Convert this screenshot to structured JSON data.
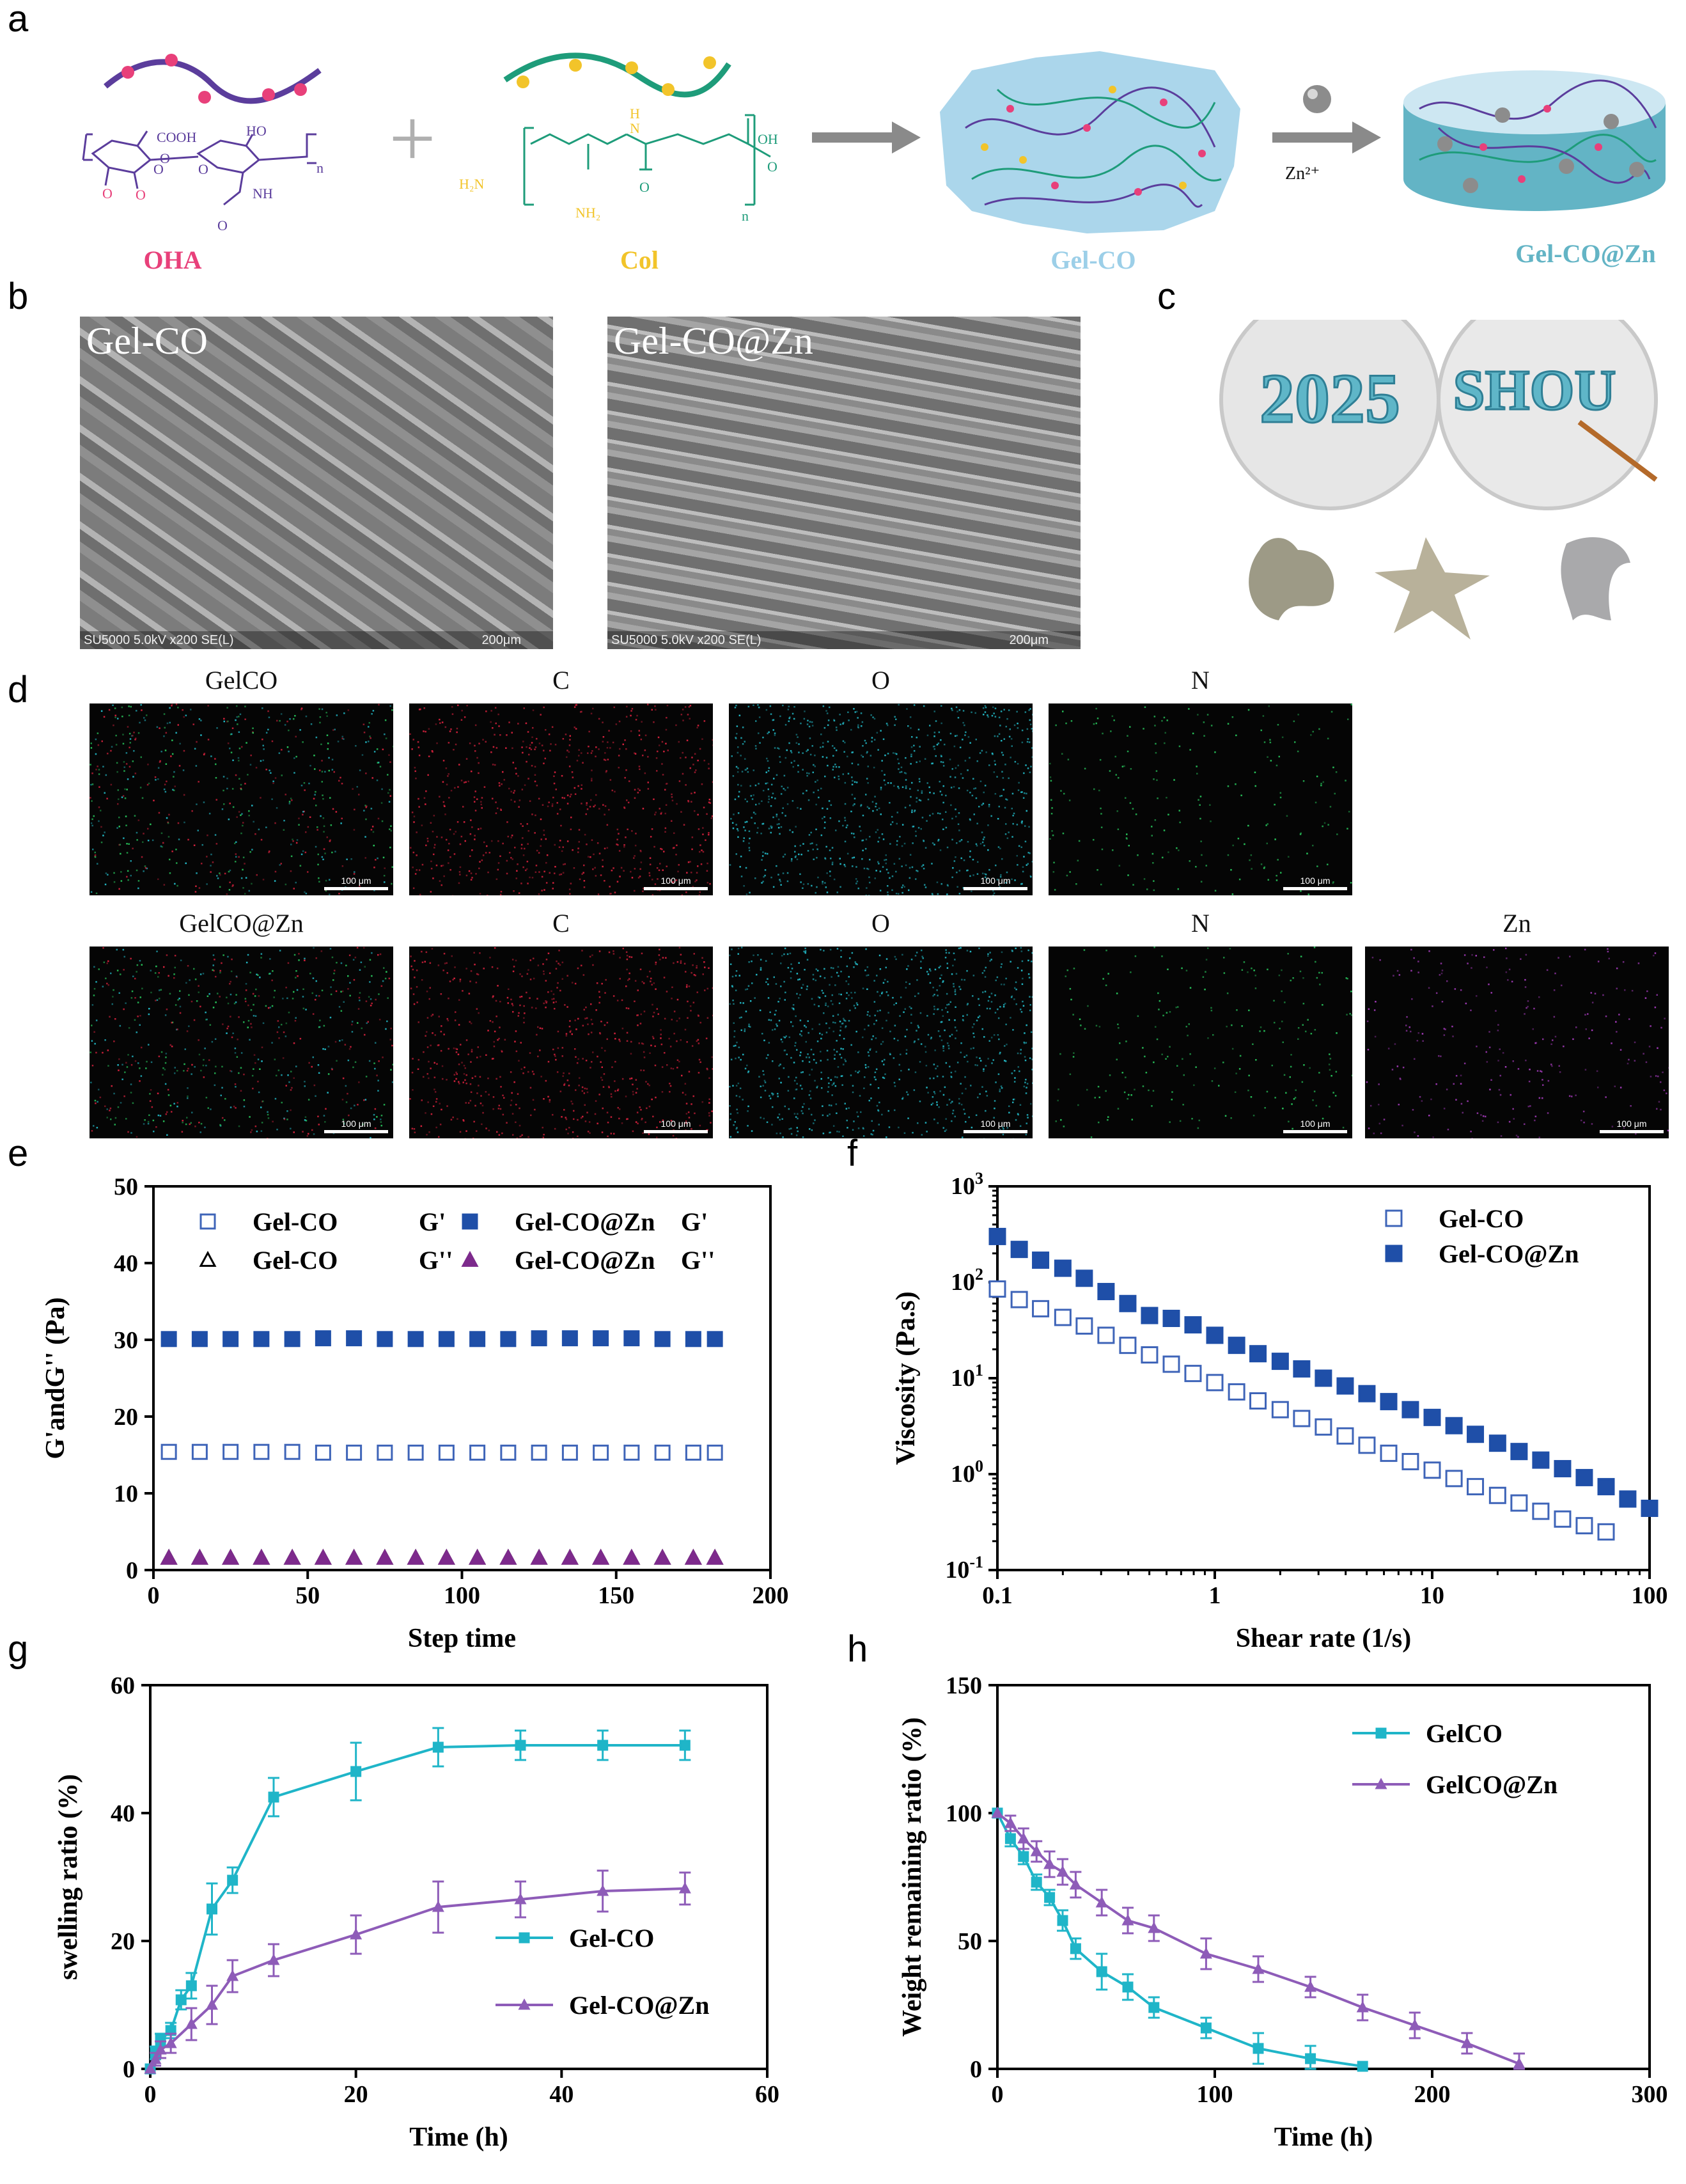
{
  "panels": {
    "a": "a",
    "b": "b",
    "c": "c",
    "d": "d",
    "e": "e",
    "f": "f",
    "g": "g",
    "h": "h"
  },
  "scheme": {
    "oha_label": "OHA",
    "col_label": "Col",
    "gelco_label": "Gel-CO",
    "gelcozn_label": "Gel-CO@Zn",
    "zn_arrow_label": "Zn²⁺",
    "plus": "+",
    "oha_struct": {
      "cooh": "COOH",
      "ho": "HO",
      "nh": "NH",
      "o1": "O",
      "o2": "O",
      "o3": "O",
      "o4": "O",
      "o5": "O",
      "o6": "O",
      "n": "n"
    },
    "col_struct": {
      "oh": "OH",
      "h": "H",
      "n_atom": "N",
      "h2n": "H₂N",
      "nh2": "NH₂",
      "o1": "O",
      "o2": "O",
      "n": "n"
    },
    "colors": {
      "oha": "#e8407a",
      "col": "#f2c42a",
      "gel": "#9ccfe8",
      "gelzn": "#63b4c5",
      "purple": "#5b3d9c",
      "green": "#1e9c7a"
    }
  },
  "sem": {
    "left_label": "Gel-CO",
    "right_label": "Gel-CO@Zn",
    "left_footer": "SU5000 5.0kV x200 SE(L)",
    "right_footer": "SU5000 5.0kV x200 SE(L)",
    "scale": "200μm"
  },
  "photos": {
    "dish1_text": "2025",
    "dish2_text": "SHOU"
  },
  "eds": {
    "row1": [
      "GelCO",
      "C",
      "O",
      "N"
    ],
    "row2": [
      "GelCO@Zn",
      "C",
      "O",
      "N",
      "Zn"
    ],
    "scale": "100 μm",
    "colors": {
      "mix": "#3a2c3a",
      "C": "#d4213c",
      "O": "#22b7c4",
      "N": "#27c25a",
      "Zn": "#a23ab8"
    }
  },
  "chart_data": [
    {
      "panel": "e",
      "type": "scatter",
      "xlabel": "Step time",
      "ylabel": "G'andG'' (Pa)",
      "xlim": [
        0,
        200
      ],
      "ylim": [
        0,
        50
      ],
      "xticks": [
        "0",
        "50",
        "100",
        "150",
        "200"
      ],
      "yticks": [
        "0",
        "10",
        "20",
        "30",
        "40",
        "50"
      ],
      "legend_position": "top",
      "series": [
        {
          "name": "Gel-CO",
          "modulus": "G'",
          "marker": "square-open",
          "color": "#3e64b8",
          "x": [
            5,
            15,
            25,
            35,
            45,
            55,
            65,
            75,
            85,
            95,
            105,
            115,
            125,
            135,
            145,
            155,
            165,
            175,
            182
          ],
          "y": [
            15.4,
            15.4,
            15.4,
            15.4,
            15.4,
            15.3,
            15.3,
            15.3,
            15.3,
            15.3,
            15.3,
            15.3,
            15.3,
            15.3,
            15.3,
            15.3,
            15.3,
            15.3,
            15.3
          ]
        },
        {
          "name": "Gel-CO@Zn",
          "modulus": "G'",
          "marker": "square-filled",
          "color": "#1f4fa8",
          "x": [
            5,
            15,
            25,
            35,
            45,
            55,
            65,
            75,
            85,
            95,
            105,
            115,
            125,
            135,
            145,
            155,
            165,
            175,
            182
          ],
          "y": [
            30.1,
            30.1,
            30.1,
            30.1,
            30.1,
            30.2,
            30.2,
            30.1,
            30.1,
            30.1,
            30.1,
            30.1,
            30.2,
            30.2,
            30.2,
            30.2,
            30.1,
            30.1,
            30.1
          ]
        },
        {
          "name": "Gel-CO",
          "modulus": "G''",
          "marker": "triangle-open",
          "color": "#000000",
          "x": [
            5,
            15,
            25,
            35,
            45,
            55,
            65,
            75,
            85,
            95,
            105,
            115,
            125,
            135,
            145,
            155,
            165,
            175,
            182
          ],
          "y": [
            1.6,
            1.6,
            1.6,
            1.6,
            1.6,
            1.6,
            1.6,
            1.6,
            1.6,
            1.6,
            1.6,
            1.6,
            1.6,
            1.6,
            1.6,
            1.6,
            1.6,
            1.6,
            1.6
          ]
        },
        {
          "name": "Gel-CO@Zn",
          "modulus": "G''",
          "marker": "triangle-filled",
          "color": "#7d2a8c",
          "x": [
            5,
            15,
            25,
            35,
            45,
            55,
            65,
            75,
            85,
            95,
            105,
            115,
            125,
            135,
            145,
            155,
            165,
            175,
            182
          ],
          "y": [
            1.6,
            1.6,
            1.6,
            1.6,
            1.6,
            1.6,
            1.6,
            1.6,
            1.6,
            1.6,
            1.6,
            1.6,
            1.6,
            1.6,
            1.6,
            1.6,
            1.6,
            1.6,
            1.6
          ]
        }
      ]
    },
    {
      "panel": "f",
      "type": "scatter",
      "xlabel": "Shear rate (1/s)",
      "ylabel": "Viscosity (Pa.s)",
      "xscale": "log",
      "yscale": "log",
      "xlim": [
        0.1,
        100
      ],
      "ylim": [
        0.1,
        1000
      ],
      "xticks": [
        "0.1",
        "1",
        "10",
        "100"
      ],
      "yticks": [
        {
          "base": "10",
          "exp": "-1"
        },
        {
          "base": "10",
          "exp": "0"
        },
        {
          "base": "10",
          "exp": "1"
        },
        {
          "base": "10",
          "exp": "2"
        },
        {
          "base": "10",
          "exp": "3"
        }
      ],
      "legend_position": "top-right",
      "series": [
        {
          "name": "Gel-CO",
          "marker": "square-open",
          "color": "#3e64b8",
          "x": [
            0.1,
            0.126,
            0.158,
            0.2,
            0.251,
            0.316,
            0.398,
            0.501,
            0.631,
            0.794,
            1,
            1.26,
            1.58,
            2,
            2.51,
            3.16,
            3.98,
            5.01,
            6.31,
            7.94,
            10,
            12.6,
            15.8,
            20,
            25.1,
            31.6,
            39.8,
            50.1,
            63.1
          ],
          "y": [
            85,
            66,
            53,
            43,
            35,
            28,
            22,
            17.5,
            14,
            11.2,
            9,
            7.2,
            5.8,
            4.7,
            3.8,
            3.1,
            2.5,
            2.0,
            1.65,
            1.35,
            1.1,
            0.9,
            0.74,
            0.6,
            0.5,
            0.41,
            0.34,
            0.29,
            0.25
          ]
        },
        {
          "name": "Gel-CO@Zn",
          "marker": "square-filled",
          "color": "#1f4fa8",
          "x": [
            0.1,
            0.126,
            0.158,
            0.2,
            0.251,
            0.316,
            0.398,
            0.501,
            0.631,
            0.794,
            1,
            1.26,
            1.58,
            2,
            2.51,
            3.16,
            3.98,
            5.01,
            6.31,
            7.94,
            10,
            12.6,
            15.8,
            20,
            25.1,
            31.6,
            39.8,
            50.1,
            63.1,
            79.4,
            100
          ],
          "y": [
            300,
            220,
            170,
            140,
            110,
            80,
            60,
            45,
            42,
            36,
            28,
            22,
            18,
            15,
            12.5,
            10,
            8.3,
            6.9,
            5.7,
            4.7,
            3.9,
            3.2,
            2.6,
            2.1,
            1.72,
            1.4,
            1.14,
            0.92,
            0.74,
            0.55,
            0.44
          ]
        }
      ]
    },
    {
      "panel": "g",
      "type": "line",
      "xlabel": "Time (h)",
      "ylabel": "swelling ratio (%)",
      "xlim": [
        0,
        60
      ],
      "ylim": [
        0,
        60
      ],
      "xticks": [
        "0",
        "20",
        "40",
        "60"
      ],
      "yticks": [
        "0",
        "20",
        "40",
        "60"
      ],
      "legend_position": "bottom-right",
      "series": [
        {
          "name": "Gel-CO",
          "marker": "square-filled",
          "color": "#1fb5c8",
          "x": [
            0,
            0.5,
            1,
            2,
            3,
            4,
            6,
            8,
            12,
            20,
            28,
            36,
            44,
            52
          ],
          "y": [
            0,
            2.5,
            4.5,
            6,
            10.8,
            13,
            25,
            29.5,
            42.5,
            46.5,
            50.3,
            50.6,
            50.6,
            50.6
          ],
          "err": [
            0,
            1,
            1,
            1.2,
            1.5,
            2,
            4,
            2,
            3,
            4.5,
            3,
            2.3,
            2.3,
            2.3
          ]
        },
        {
          "name": "Gel-CO@Zn",
          "marker": "triangle-filled",
          "color": "#8e5cb8",
          "x": [
            0,
            0.5,
            1,
            2,
            4,
            6,
            8,
            12,
            20,
            28,
            36,
            44,
            52
          ],
          "y": [
            0,
            1.5,
            3,
            4,
            7,
            10,
            14.5,
            17,
            21,
            25.3,
            26.5,
            27.8,
            28.2
          ],
          "err": [
            0,
            1,
            1.3,
            1.5,
            2.5,
            3,
            2.5,
            2.5,
            3,
            4,
            2.8,
            3.2,
            2.5
          ]
        }
      ]
    },
    {
      "panel": "h",
      "type": "line",
      "xlabel": "Time (h)",
      "ylabel": "Weight remaining ratio (%)",
      "xlim": [
        0,
        300
      ],
      "ylim": [
        0,
        150
      ],
      "xticks": [
        "0",
        "100",
        "200",
        "300"
      ],
      "yticks": [
        "0",
        "50",
        "100",
        "150"
      ],
      "legend_position": "top-right",
      "series": [
        {
          "name": "GelCO",
          "marker": "square-filled",
          "color": "#1fb5c8",
          "x": [
            0,
            6,
            12,
            18,
            24,
            30,
            36,
            48,
            60,
            72,
            96,
            120,
            144,
            168
          ],
          "y": [
            100,
            90,
            83,
            73,
            67,
            58,
            47,
            38,
            32,
            24,
            16,
            8,
            4,
            1
          ],
          "err": [
            0,
            3,
            3,
            3,
            3,
            4,
            4,
            7,
            5,
            4,
            4,
            6,
            5,
            0
          ]
        },
        {
          "name": "GelCO@Zn",
          "marker": "triangle-filled",
          "color": "#8e5cb8",
          "x": [
            0,
            6,
            12,
            18,
            24,
            30,
            36,
            48,
            60,
            72,
            96,
            120,
            144,
            168,
            192,
            216,
            240
          ],
          "y": [
            100,
            96,
            90,
            85,
            80,
            77,
            72,
            65,
            58,
            55,
            45,
            39,
            32,
            24,
            17,
            10,
            2
          ],
          "err": [
            0,
            3,
            4,
            4,
            5,
            5,
            5,
            5,
            5,
            5,
            6,
            5,
            4,
            5,
            5,
            4,
            4
          ]
        }
      ]
    }
  ]
}
